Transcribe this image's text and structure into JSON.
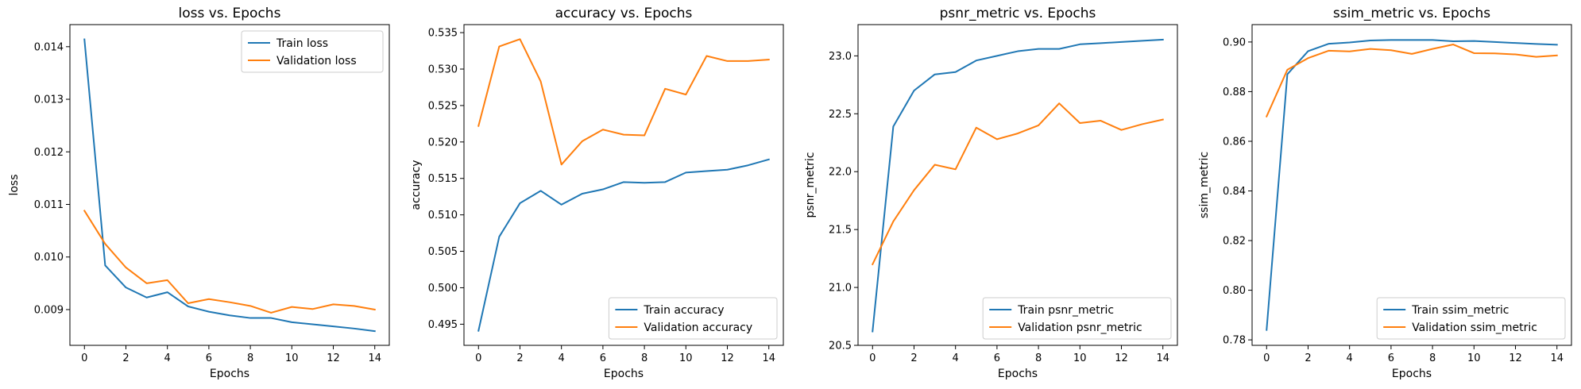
{
  "colors": {
    "train": "#1f77b4",
    "validation": "#ff7f0e"
  },
  "chart_data": [
    {
      "type": "line",
      "title": "loss vs. Epochs",
      "xlabel": "Epochs",
      "ylabel": "loss",
      "x": [
        0,
        1,
        2,
        3,
        4,
        5,
        6,
        7,
        8,
        9,
        10,
        11,
        12,
        13,
        14
      ],
      "xticks": [
        0,
        2,
        4,
        6,
        8,
        10,
        12,
        14
      ],
      "xlim": [
        -0.7,
        14.7
      ],
      "ylim": [
        0.00832,
        0.01442
      ],
      "yticks": [
        0.009,
        0.01,
        0.011,
        0.012,
        0.013,
        0.014
      ],
      "ytick_labels": [
        "0.009",
        "0.010",
        "0.011",
        "0.012",
        "0.013",
        "0.014"
      ],
      "legend": "top-right",
      "series": [
        {
          "name": "Train loss",
          "values": [
            0.01414,
            0.00984,
            0.00942,
            0.00923,
            0.00933,
            0.00906,
            0.00896,
            0.00889,
            0.00884,
            0.00884,
            0.00876,
            0.00872,
            0.00868,
            0.00864,
            0.00859
          ]
        },
        {
          "name": "Validation loss",
          "values": [
            0.01088,
            0.01025,
            0.0098,
            0.0095,
            0.00956,
            0.00912,
            0.0092,
            0.00914,
            0.00907,
            0.00894,
            0.00905,
            0.00901,
            0.0091,
            0.00907,
            0.009
          ]
        }
      ]
    },
    {
      "type": "line",
      "title": "accuracy vs. Epochs",
      "xlabel": "Epochs",
      "ylabel": "accuracy",
      "x": [
        0,
        1,
        2,
        3,
        4,
        5,
        6,
        7,
        8,
        9,
        10,
        11,
        12,
        13,
        14
      ],
      "xticks": [
        0,
        2,
        4,
        6,
        8,
        10,
        12,
        14
      ],
      "xlim": [
        -0.7,
        14.7
      ],
      "ylim": [
        0.4921,
        0.5361
      ],
      "yticks": [
        0.495,
        0.5,
        0.505,
        0.51,
        0.515,
        0.52,
        0.525,
        0.53,
        0.535
      ],
      "ytick_labels": [
        "0.495",
        "0.500",
        "0.505",
        "0.510",
        "0.515",
        "0.520",
        "0.525",
        "0.530",
        "0.535"
      ],
      "legend": "bottom-right",
      "series": [
        {
          "name": "Train accuracy",
          "values": [
            0.4941,
            0.507,
            0.5116,
            0.5133,
            0.5114,
            0.5129,
            0.5135,
            0.5145,
            0.5144,
            0.5145,
            0.5158,
            0.516,
            0.5162,
            0.5168,
            0.5176
          ]
        },
        {
          "name": "Validation accuracy",
          "values": [
            0.5222,
            0.5331,
            0.5341,
            0.5283,
            0.5169,
            0.5201,
            0.5217,
            0.521,
            0.5209,
            0.5273,
            0.5265,
            0.5318,
            0.5311,
            0.5311,
            0.5313
          ]
        }
      ]
    },
    {
      "type": "line",
      "title": "psnr_metric vs. Epochs",
      "xlabel": "Epochs",
      "ylabel": "psnr_metric",
      "x": [
        0,
        1,
        2,
        3,
        4,
        5,
        6,
        7,
        8,
        9,
        10,
        11,
        12,
        13,
        14
      ],
      "xticks": [
        0,
        2,
        4,
        6,
        8,
        10,
        12,
        14
      ],
      "xlim": [
        -0.7,
        14.7
      ],
      "ylim": [
        20.5,
        23.27
      ],
      "yticks": [
        20.5,
        21.0,
        21.5,
        22.0,
        22.5,
        23.0
      ],
      "ytick_labels": [
        "20.5",
        "21.0",
        "21.5",
        "22.0",
        "22.5",
        "23.0"
      ],
      "legend": "bottom-right",
      "series": [
        {
          "name": "Train psnr_metric",
          "values": [
            20.62,
            22.39,
            22.7,
            22.84,
            22.86,
            22.96,
            23.0,
            23.04,
            23.06,
            23.06,
            23.1,
            23.11,
            23.12,
            23.13,
            23.14
          ]
        },
        {
          "name": "Validation psnr_metric",
          "values": [
            21.2,
            21.57,
            21.84,
            22.06,
            22.02,
            22.38,
            22.28,
            22.33,
            22.4,
            22.59,
            22.42,
            22.44,
            22.36,
            22.41,
            22.45
          ]
        }
      ]
    },
    {
      "type": "line",
      "title": "ssim_metric vs. Epochs",
      "xlabel": "Epochs",
      "ylabel": "ssim_metric",
      "x": [
        0,
        1,
        2,
        3,
        4,
        5,
        6,
        7,
        8,
        9,
        10,
        11,
        12,
        13,
        14
      ],
      "xticks": [
        0,
        2,
        4,
        6,
        8,
        10,
        12,
        14
      ],
      "xlim": [
        -0.7,
        14.7
      ],
      "ylim": [
        0.7778,
        0.907
      ],
      "yticks": [
        0.78,
        0.8,
        0.82,
        0.84,
        0.86,
        0.88,
        0.9
      ],
      "ytick_labels": [
        "0.78",
        "0.80",
        "0.82",
        "0.84",
        "0.86",
        "0.88",
        "0.90"
      ],
      "legend": "bottom-right",
      "series": [
        {
          "name": "Train ssim_metric",
          "values": [
            0.784,
            0.887,
            0.8963,
            0.8993,
            0.8998,
            0.9006,
            0.9008,
            0.9008,
            0.9008,
            0.9003,
            0.9004,
            0.9,
            0.8996,
            0.8992,
            0.8989
          ]
        },
        {
          "name": "Validation ssim_metric",
          "values": [
            0.87,
            0.8888,
            0.8935,
            0.8965,
            0.8962,
            0.8972,
            0.8967,
            0.8952,
            0.8972,
            0.899,
            0.8955,
            0.8954,
            0.895,
            0.894,
            0.8946
          ]
        }
      ]
    }
  ]
}
